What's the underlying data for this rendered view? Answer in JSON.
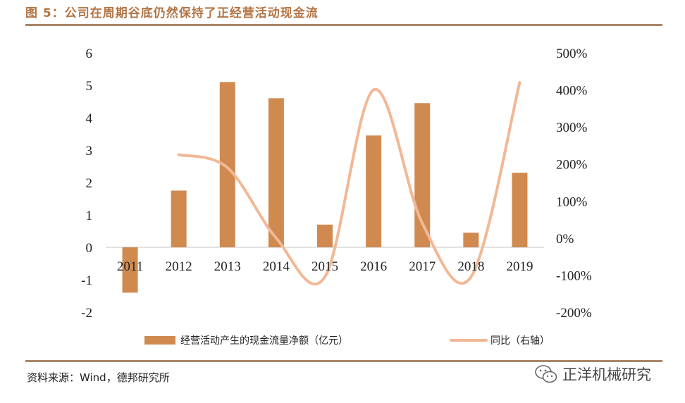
{
  "header": {
    "title": "图 5：公司在周期谷底仍然保持了正经营活动现金流"
  },
  "chart_data": {
    "type": "bar+line",
    "categories": [
      "2011",
      "2012",
      "2013",
      "2014",
      "2015",
      "2016",
      "2017",
      "2018",
      "2019"
    ],
    "series": [
      {
        "name": "经营活动产生的现金流量净额（亿元）",
        "type": "bar",
        "axis": "left",
        "values": [
          -1.4,
          1.75,
          5.1,
          4.6,
          0.7,
          3.45,
          4.45,
          0.45,
          2.3
        ],
        "color": "#d08a50"
      },
      {
        "name": "同比（右轴）",
        "type": "line",
        "axis": "right",
        "values": [
          null,
          225,
          190,
          0,
          -105,
          400,
          40,
          -105,
          420
        ],
        "color": "#f2b896"
      }
    ],
    "left_axis": {
      "ylim": [
        -2,
        6
      ],
      "ticks": [
        "-2",
        "-1",
        "0",
        "1",
        "2",
        "3",
        "4",
        "5",
        "6"
      ]
    },
    "right_axis": {
      "ylim": [
        -200,
        500
      ],
      "ticks": [
        "-200%",
        "-100%",
        "0%",
        "100%",
        "200%",
        "300%",
        "400%",
        "500%"
      ]
    },
    "legend_position": "bottom",
    "grid": false
  },
  "footer": {
    "source": "资料来源：Wind，德邦研究所"
  },
  "watermark": {
    "text": "正洋机械研究"
  }
}
